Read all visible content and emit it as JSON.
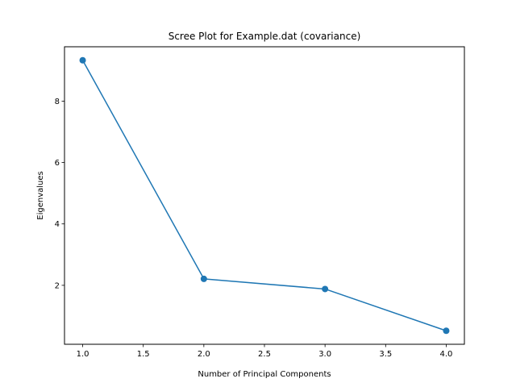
{
  "chart_data": {
    "type": "line",
    "title": "Scree Plot for Example.dat (covariance)",
    "xlabel": "Number of Principal Components",
    "ylabel": "Eigenvalues",
    "x": [
      1.0,
      2.0,
      3.0,
      4.0
    ],
    "series": [
      {
        "values": [
          9.33,
          2.21,
          1.88,
          0.52
        ]
      }
    ],
    "xlim": [
      0.85,
      4.15
    ],
    "ylim": [
      0.08,
      9.77
    ],
    "xticks": [
      1.0,
      1.5,
      2.0,
      2.5,
      3.0,
      3.5,
      4.0
    ],
    "xtick_labels": [
      "1.0",
      "1.5",
      "2.0",
      "2.5",
      "3.0",
      "3.5",
      "4.0"
    ],
    "yticks": [
      2,
      4,
      6,
      8
    ],
    "ytick_labels": [
      "2",
      "4",
      "6",
      "8"
    ],
    "grid": false,
    "markers": "circle",
    "line_color": "#1f77b4"
  }
}
